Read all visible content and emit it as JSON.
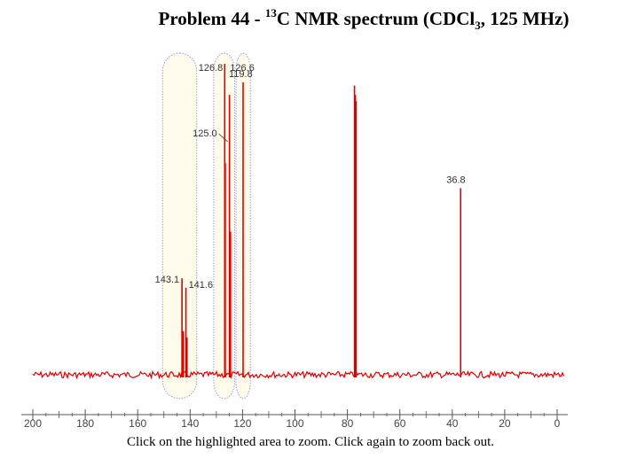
{
  "title": {
    "prefix": "Problem 44 - ",
    "isotope_mass": "13",
    "nucleus_text": "C NMR spectrum (CDCl",
    "subscript": "3",
    "suffix": ", 125 MHz)"
  },
  "footer": "Click on the highlighted area to zoom. Click again to zoom back out.",
  "colors": {
    "spectrum": "#dd0000",
    "zoom_fill": "#fffbea",
    "zoom_border": "#9a9ae0",
    "axis": "#555555"
  },
  "chart_data": {
    "type": "line",
    "title": "Problem 44 - 13C NMR spectrum (CDCl3, 125 MHz)",
    "xlabel": "",
    "ylabel": "",
    "xlim": [
      200,
      0
    ],
    "x_reversed": true,
    "grid": false,
    "x_ticks": [
      200,
      180,
      160,
      140,
      120,
      100,
      80,
      60,
      40,
      20,
      0
    ],
    "peaks": [
      {
        "ppm": 143.1,
        "intensity": 0.31,
        "label": "143.1"
      },
      {
        "ppm": 142.6,
        "intensity": 0.14,
        "label": ""
      },
      {
        "ppm": 141.6,
        "intensity": 0.28,
        "label": "141.6"
      },
      {
        "ppm": 141.2,
        "intensity": 0.12,
        "label": ""
      },
      {
        "ppm": 126.8,
        "intensity": 1.0,
        "label": "126.8"
      },
      {
        "ppm": 126.6,
        "intensity": 0.68,
        "label": "126.6"
      },
      {
        "ppm": 125.0,
        "intensity": 0.9,
        "label": "125.0"
      },
      {
        "ppm": 124.6,
        "intensity": 0.46,
        "label": ""
      },
      {
        "ppm": 119.8,
        "intensity": 0.94,
        "label": "119.8"
      },
      {
        "ppm": 77.3,
        "intensity": 0.93,
        "label": ""
      },
      {
        "ppm": 77.0,
        "intensity": 0.9,
        "label": ""
      },
      {
        "ppm": 76.7,
        "intensity": 0.88,
        "label": ""
      },
      {
        "ppm": 36.8,
        "intensity": 0.6,
        "label": "36.8"
      }
    ],
    "zoom_regions": [
      {
        "from": 150.5,
        "to": 137.5
      },
      {
        "from": 131.0,
        "to": 123.0
      },
      {
        "from": 122.5,
        "to": 117.0
      }
    ]
  }
}
